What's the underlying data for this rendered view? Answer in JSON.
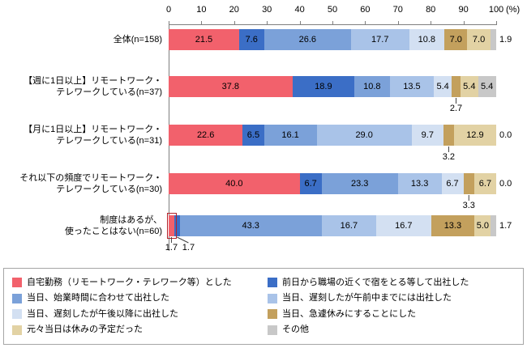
{
  "chart_data": {
    "type": "bar",
    "stacked": true,
    "orientation": "horizontal",
    "unit": "%",
    "xlim": [
      0,
      100
    ],
    "axis": {
      "ticks": [
        0,
        10,
        20,
        30,
        40,
        50,
        60,
        70,
        80,
        90,
        100
      ],
      "unit": "(%)"
    },
    "series_labels": [
      "自宅勤務（リモートワーク・テレワーク等）とした",
      "前日から職場の近くで宿をとる等して出社した",
      "当日、始業時間に合わせて出社した",
      "当日、遅刻したが午前中までには出社した",
      "当日、遅刻したが午後以降に出社した",
      "当日、急遽休みにすることにした",
      "元々当日は休みの予定だった",
      "その他"
    ],
    "colors": [
      "#f2616c",
      "#3b6ec6",
      "#7ba1d9",
      "#a9c3e8",
      "#d3e0f2",
      "#c3a05d",
      "#e2d2a4",
      "#c8c8c8"
    ],
    "categories": [
      {
        "label_lines": [
          "全体(n=158)"
        ],
        "values": [
          21.5,
          7.6,
          26.6,
          17.7,
          10.8,
          7.0,
          7.0,
          1.9
        ],
        "label_pos": [
          "in",
          "in",
          "in",
          "in",
          "in",
          "in",
          "in",
          "out"
        ]
      },
      {
        "label_lines": [
          "【週に1日以上】リモートワーク・",
          "テレワークしている(n=37)"
        ],
        "values": [
          37.8,
          18.9,
          10.8,
          13.5,
          5.4,
          2.7,
          5.4,
          5.4
        ],
        "label_pos": [
          "in",
          "in",
          "in",
          "in",
          "in",
          "below",
          "in",
          "in"
        ]
      },
      {
        "label_lines": [
          "【月に1日以上】リモートワーク・",
          "テレワークしている(n=31)"
        ],
        "values": [
          22.6,
          6.5,
          16.1,
          29.0,
          9.7,
          3.2,
          12.9,
          0.0
        ],
        "label_pos": [
          "in",
          "in",
          "in",
          "in",
          "in",
          "below",
          "in",
          "out"
        ]
      },
      {
        "label_lines": [
          "それ以下の頻度でリモートワーク・",
          "テレワークしている(n=30)"
        ],
        "values": [
          40.0,
          6.7,
          23.3,
          13.3,
          6.7,
          3.3,
          6.7,
          0.0
        ],
        "label_pos": [
          "in",
          "in",
          "in",
          "in",
          "in",
          "below",
          "in",
          "out"
        ]
      },
      {
        "label_lines": [
          "制度はあるが、",
          "使ったことはない(n=60)"
        ],
        "values": [
          1.7,
          1.7,
          43.3,
          16.7,
          16.7,
          13.3,
          5.0,
          1.7
        ],
        "label_pos": [
          "below",
          "below",
          "in",
          "in",
          "in",
          "in",
          "in",
          "out"
        ],
        "highlight_first": true
      }
    ]
  }
}
